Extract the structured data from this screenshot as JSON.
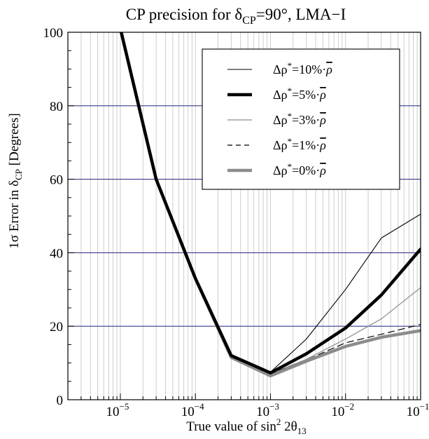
{
  "chart_data": {
    "type": "line",
    "title": "CP precision for δ",
    "title_sub": "CP",
    "title_tail": "=90°, LMA−I",
    "xlabel": "True value of sin",
    "xlabel_sup": "2",
    "xlabel_mid": " 2θ",
    "xlabel_sub": "13",
    "ylabel": "1σ Error in δ",
    "ylabel_sub": "CP",
    "ylabel_tail": " [Degrees]",
    "x_scale": "log",
    "xlim": [
      2e-06,
      0.1
    ],
    "ylim": [
      0,
      100
    ],
    "x_ticks": [
      {
        "value": 1e-05,
        "base": "10",
        "exp": "−5"
      },
      {
        "value": 0.0001,
        "base": "10",
        "exp": "−4"
      },
      {
        "value": 0.001,
        "base": "10",
        "exp": "−3"
      },
      {
        "value": 0.01,
        "base": "10",
        "exp": "−2"
      },
      {
        "value": 0.1,
        "base": "10",
        "exp": "−1"
      }
    ],
    "y_ticks": [
      {
        "value": 0,
        "label": "0"
      },
      {
        "value": 20,
        "label": "20"
      },
      {
        "value": 40,
        "label": "40"
      },
      {
        "value": 60,
        "label": "60"
      },
      {
        "value": 80,
        "label": "80"
      },
      {
        "value": 100,
        "label": "100"
      }
    ],
    "grid": {
      "vertical_minor_color": "#c8c8c8",
      "horizontal_color": "#3a3a8c",
      "horizontal_at": [
        20,
        40,
        60,
        80
      ]
    },
    "legend_position": "top-right",
    "x": [
      1e-05,
      3e-05,
      0.0001,
      0.0003,
      0.001,
      0.003,
      0.01,
      0.03,
      0.1
    ],
    "series": [
      {
        "name": "Δρ*=10%·ρ̄",
        "label_pre": "Δρ",
        "label_mid": "=10%·",
        "label_bar": "ρ",
        "color": "#000000",
        "width": 1.1,
        "dash": "",
        "values": [
          101,
          60,
          33,
          12,
          7.5,
          16.5,
          30,
          44,
          50.5
        ]
      },
      {
        "name": "Δρ*=5%·ρ̄",
        "label_pre": "Δρ",
        "label_mid": "=5%·",
        "label_bar": "ρ",
        "color": "#000000",
        "width": 4.5,
        "dash": "",
        "values": [
          101,
          60,
          33,
          12,
          7.3,
          12.5,
          19.5,
          28.5,
          41
        ]
      },
      {
        "name": "Δρ*=3%·ρ̄",
        "label_pre": "Δρ",
        "label_mid": "=3%·",
        "label_bar": "ρ",
        "color": "#8c8c8c",
        "width": 1.2,
        "dash": "",
        "values": [
          101,
          60,
          33,
          12,
          7.1,
          11,
          16.5,
          22,
          30.5
        ]
      },
      {
        "name": "Δρ*=1%·ρ̄",
        "label_pre": "Δρ",
        "label_mid": "=1%·",
        "label_bar": "ρ",
        "color": "#000000",
        "width": 1.2,
        "dash": "9,6",
        "values": [
          101,
          60,
          33,
          12,
          7,
          10.8,
          15.5,
          17.8,
          20.5
        ]
      },
      {
        "name": "Δρ*=0%·ρ̄",
        "label_pre": "Δρ",
        "label_mid": "=0%·",
        "label_bar": "ρ",
        "color": "#8c8c8c",
        "width": 4.5,
        "dash": "",
        "values": [
          101,
          60,
          33,
          11.5,
          6.5,
          10.5,
          14.5,
          17,
          18.8
        ]
      }
    ]
  }
}
